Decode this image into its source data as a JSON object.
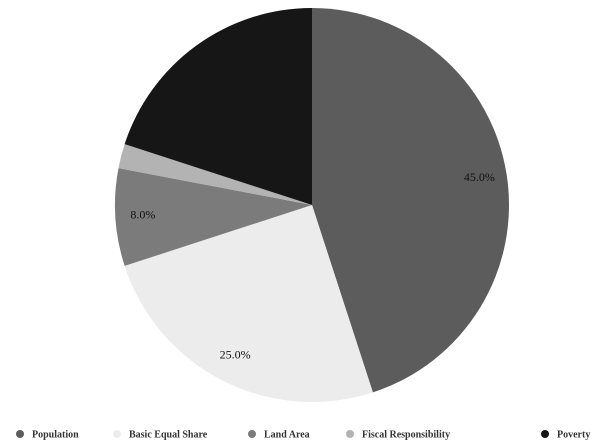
{
  "chart_data": {
    "type": "pie",
    "categories": [
      "Population",
      "Basic Equal Share",
      "Land Area",
      "Fiscal Responsibility",
      "Poverty"
    ],
    "values": [
      45,
      25,
      8,
      2,
      20
    ],
    "value_labels": [
      "45.0%",
      "25.0%",
      "8.0%",
      null,
      null
    ],
    "colors": [
      "#5c5c5c",
      "#ececec",
      "#7b7b7b",
      "#b3b3b3",
      "#161616"
    ],
    "legend": "bottom"
  }
}
